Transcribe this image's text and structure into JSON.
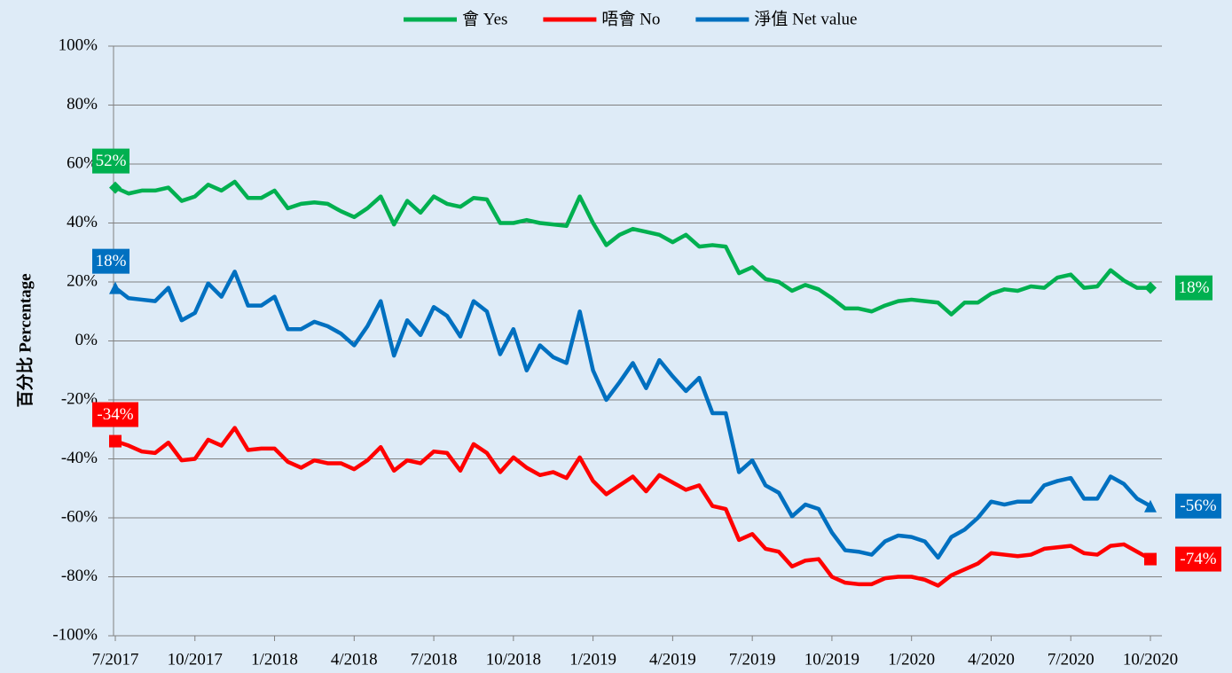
{
  "chart_data": {
    "type": "line",
    "y_label": "百分比 Percentage",
    "categories": [
      "7/2017",
      null,
      null,
      null,
      null,
      null,
      "10/2017",
      null,
      null,
      null,
      null,
      null,
      "1/2018",
      null,
      null,
      null,
      null,
      null,
      "4/2018",
      null,
      null,
      null,
      null,
      null,
      "7/2018",
      null,
      null,
      null,
      null,
      null,
      "10/2018",
      null,
      null,
      null,
      null,
      null,
      "1/2019",
      null,
      null,
      null,
      null,
      null,
      "4/2019",
      null,
      null,
      null,
      null,
      null,
      "7/2019",
      null,
      null,
      null,
      null,
      null,
      "10/2019",
      null,
      null,
      null,
      null,
      null,
      "1/2020",
      null,
      null,
      null,
      null,
      null,
      "4/2020",
      null,
      null,
      null,
      null,
      null,
      "7/2020",
      null,
      null,
      null,
      null,
      null,
      "10/2020"
    ],
    "ylim": [
      -100,
      100
    ],
    "yticks": [
      {
        "value": -100,
        "label": "-100%"
      },
      {
        "value": -80,
        "label": "-80%"
      },
      {
        "value": -60,
        "label": "-60%"
      },
      {
        "value": -40,
        "label": "-40%"
      },
      {
        "value": -20,
        "label": "-20%"
      },
      {
        "value": 0,
        "label": "0%"
      },
      {
        "value": 20,
        "label": "20%"
      },
      {
        "value": 40,
        "label": "40%"
      },
      {
        "value": 60,
        "label": "60%"
      },
      {
        "value": 80,
        "label": "80%"
      },
      {
        "value": 100,
        "label": "100%"
      }
    ],
    "grid": true,
    "legend": "top",
    "series": [
      {
        "name": "會 Yes",
        "color": "#00b050",
        "marker": "diamond",
        "values": [
          52,
          50,
          51,
          51,
          52,
          47.5,
          49,
          53,
          51,
          54,
          48.5,
          48.5,
          51,
          45,
          46.5,
          47,
          46.5,
          44,
          42,
          45,
          49,
          39.5,
          47.5,
          43.5,
          49,
          46.5,
          45.5,
          48.5,
          48,
          40,
          40,
          41,
          40,
          39.5,
          39,
          49,
          40,
          32.5,
          36,
          38,
          37,
          36,
          33.5,
          36,
          32,
          32.5,
          32,
          23,
          25,
          21,
          20,
          17,
          19,
          17.5,
          14.5,
          11,
          11,
          10,
          12,
          13.5,
          14,
          13.5,
          13,
          9,
          13,
          13,
          16,
          17.5,
          17,
          18.5,
          18,
          21.5,
          22.5,
          18,
          18.5,
          24,
          20.5,
          18,
          18
        ],
        "value_labels": [
          "52%",
          null,
          null,
          null,
          null,
          null,
          null,
          null,
          null,
          null,
          null,
          null,
          null,
          null,
          null,
          null,
          null,
          null,
          null,
          null,
          null,
          null,
          null,
          null,
          null,
          null,
          null,
          null,
          null,
          null,
          null,
          null,
          null,
          null,
          null,
          null,
          null,
          null,
          null,
          null,
          null,
          null,
          null,
          null,
          null,
          null,
          null,
          null,
          null,
          null,
          null,
          null,
          null,
          null,
          null,
          null,
          null,
          null,
          null,
          null,
          null,
          null,
          null,
          null,
          null,
          null,
          null,
          null,
          null,
          null,
          null,
          null,
          null,
          null,
          null,
          null,
          null,
          null,
          "18%"
        ]
      },
      {
        "name": "唔會 No",
        "color": "#ff0000",
        "marker": "square",
        "values": [
          -34,
          -35.5,
          -37.5,
          -38,
          -34.5,
          -40.5,
          -40,
          -33.5,
          -35.5,
          -29.5,
          -37,
          -36.5,
          -36.5,
          -41,
          -43,
          -40.5,
          -41.5,
          -41.5,
          -43.5,
          -40.5,
          -36,
          -44,
          -40.5,
          -41.5,
          -37.5,
          -38,
          -44,
          -35,
          -38,
          -44.5,
          -39.5,
          -43,
          -45.5,
          -44.5,
          -46.5,
          -39.5,
          -47.5,
          -52,
          -49,
          -46,
          -51,
          -45.5,
          -48,
          -50.5,
          -49,
          -56,
          -57,
          -67.5,
          -65.5,
          -70.5,
          -71.5,
          -76.5,
          -74.5,
          -74,
          -80,
          -82,
          -82.5,
          -82.5,
          -80.5,
          -80,
          -80,
          -81,
          -83,
          -79.5,
          -77.5,
          -75.5,
          -72,
          -72.5,
          -73,
          -72.5,
          -70.5,
          -70,
          -69.5,
          -72,
          -72.5,
          -69.5,
          -69,
          -71.5,
          -74
        ],
        "value_labels": [
          "-34%",
          null,
          null,
          null,
          null,
          null,
          null,
          null,
          null,
          null,
          null,
          null,
          null,
          null,
          null,
          null,
          null,
          null,
          null,
          null,
          null,
          null,
          null,
          null,
          null,
          null,
          null,
          null,
          null,
          null,
          null,
          null,
          null,
          null,
          null,
          null,
          null,
          null,
          null,
          null,
          null,
          null,
          null,
          null,
          null,
          null,
          null,
          null,
          null,
          null,
          null,
          null,
          null,
          null,
          null,
          null,
          null,
          null,
          null,
          null,
          null,
          null,
          null,
          null,
          null,
          null,
          null,
          null,
          null,
          null,
          null,
          null,
          null,
          null,
          null,
          null,
          null,
          null,
          "-74%"
        ]
      },
      {
        "name": "淨值 Net value",
        "color": "#0070c0",
        "marker": "triangle",
        "values": [
          18,
          14.5,
          14,
          13.5,
          18,
          7,
          9.5,
          19.5,
          15,
          23.5,
          12,
          12,
          15,
          4,
          4,
          6.5,
          5,
          2.5,
          -1.5,
          5,
          13.5,
          -5,
          7,
          2,
          11.5,
          8.5,
          1.5,
          13.5,
          10,
          -4.5,
          4,
          -10,
          -1.5,
          -5.5,
          -7.5,
          10,
          -10,
          -20,
          -14,
          -7.5,
          -16,
          -6.5,
          -12,
          -17,
          -12.5,
          -24.5,
          -24.5,
          -44.5,
          -40.5,
          -49,
          -51.5,
          -59.5,
          -55.5,
          -57,
          -65,
          -71,
          -71.5,
          -72.5,
          -68,
          -66,
          -66.5,
          -68,
          -73.5,
          -66.5,
          -64,
          -60,
          -54.5,
          -55.5,
          -54.5,
          -54.5,
          -49,
          -47.5,
          -46.5,
          -53.5,
          -53.5,
          -46,
          -48.5,
          -53.5,
          -56
        ],
        "value_labels": [
          "18%",
          null,
          null,
          null,
          null,
          null,
          null,
          null,
          null,
          null,
          null,
          null,
          null,
          null,
          null,
          null,
          null,
          null,
          null,
          null,
          null,
          null,
          null,
          null,
          null,
          null,
          null,
          null,
          null,
          null,
          null,
          null,
          null,
          null,
          null,
          null,
          null,
          null,
          null,
          null,
          null,
          null,
          null,
          null,
          null,
          null,
          null,
          null,
          null,
          null,
          null,
          null,
          null,
          null,
          null,
          null,
          null,
          null,
          null,
          null,
          null,
          null,
          null,
          null,
          null,
          null,
          null,
          null,
          null,
          null,
          null,
          null,
          null,
          null,
          null,
          null,
          null,
          null,
          "-56%"
        ]
      }
    ]
  }
}
